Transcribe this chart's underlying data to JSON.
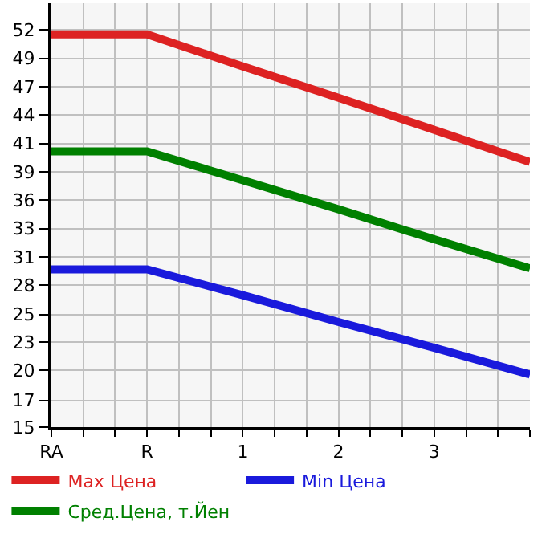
{
  "chart_data": {
    "type": "line",
    "categories": [
      "RA",
      "R",
      "1",
      "2",
      "3",
      null
    ],
    "series": [
      {
        "name": "Max Цена",
        "color": "#dd2222",
        "values": [
          51.6,
          51.6,
          48.6,
          45.7,
          42.7,
          39.7
        ]
      },
      {
        "name": "Min Цена",
        "color": "#1a1adc",
        "values": [
          29.7,
          29.7,
          27.3,
          24.8,
          22.4,
          19.9
        ]
      },
      {
        "name": "Сред.Цена, т.Йен",
        "color": "#008000",
        "values": [
          40.7,
          40.7,
          38.0,
          35.3,
          32.5,
          29.8
        ]
      }
    ],
    "ylim": [
      15,
      54.5
    ],
    "yticks": [
      15,
      {
        "value": 17.49,
        "label": "17"
      },
      {
        "value": 20.29,
        "label": "20"
      },
      {
        "value": 22.93,
        "label": "23"
      },
      {
        "value": 25.49,
        "label": "25"
      },
      {
        "value": 28.21,
        "label": "28"
      },
      {
        "value": 30.86,
        "label": "31"
      },
      {
        "value": 33.5,
        "label": "33"
      },
      {
        "value": 36.14,
        "label": "36"
      },
      {
        "value": 38.79,
        "label": "39"
      },
      {
        "value": 41.43,
        "label": "41"
      },
      {
        "value": 44.07,
        "label": "44"
      },
      {
        "value": 46.71,
        "label": "47"
      },
      {
        "value": 49.36,
        "label": "49"
      },
      52
    ],
    "grid": true,
    "legend": "bottom",
    "marker": "none",
    "line_style": "solid"
  }
}
